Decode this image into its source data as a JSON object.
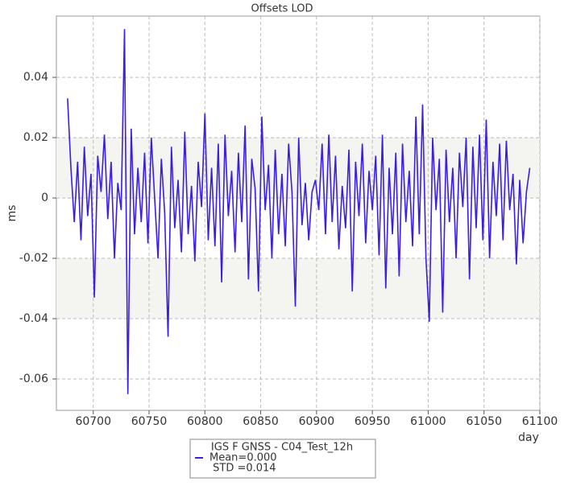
{
  "chart_data": {
    "type": "line",
    "title": "Offsets LOD",
    "x_label": "day",
    "y_label": "ms",
    "x": [
      60677,
      60680,
      60683,
      60686,
      60689,
      60692,
      60695,
      60698,
      60701,
      60704,
      60707,
      60710,
      60713,
      60716,
      60719,
      60722,
      60725,
      60728,
      60731,
      60734,
      60737,
      60740,
      60743,
      60746,
      60749,
      60752,
      60755,
      60758,
      60761,
      60764,
      60767,
      60770,
      60773,
      60776,
      60779,
      60782,
      60785,
      60788,
      60791,
      60794,
      60797,
      60800,
      60803,
      60806,
      60809,
      60812,
      60815,
      60818,
      60821,
      60824,
      60827,
      60830,
      60833,
      60836,
      60839,
      60842,
      60845,
      60848,
      60851,
      60854,
      60857,
      60860,
      60863,
      60866,
      60869,
      60872,
      60875,
      60878,
      60881,
      60884,
      60887,
      60890,
      60893,
      60896,
      60899,
      60902,
      60905,
      60908,
      60911,
      60914,
      60917,
      60920,
      60923,
      60926,
      60929,
      60932,
      60935,
      60938,
      60941,
      60944,
      60947,
      60950,
      60953,
      60956,
      60959,
      60962,
      60965,
      60968,
      60971,
      60974,
      60977,
      60980,
      60983,
      60986,
      60989,
      60992,
      60995,
      60998,
      61001,
      61004,
      61007,
      61010,
      61013,
      61016,
      61019,
      61022,
      61025,
      61028,
      61031,
      61034,
      61037,
      61040,
      61043,
      61046,
      61049,
      61052,
      61055,
      61058,
      61061,
      61064,
      61067,
      61070,
      61073,
      61076,
      61079,
      61082,
      61085,
      61088,
      61091
    ],
    "series": [
      {
        "name": "IGS F GNSS - C04_Test_12h",
        "color": "#3b1fe0",
        "values": [
          0.033,
          0.01,
          -0.008,
          0.012,
          -0.014,
          0.017,
          -0.006,
          0.008,
          -0.033,
          0.014,
          0.002,
          0.021,
          -0.007,
          0.012,
          -0.02,
          0.005,
          -0.004,
          0.056,
          -0.065,
          0.023,
          -0.012,
          0.01,
          -0.008,
          0.015,
          -0.015,
          0.02,
          0.0,
          -0.02,
          0.013,
          -0.005,
          -0.046,
          0.017,
          -0.01,
          0.006,
          -0.018,
          0.022,
          -0.012,
          0.004,
          -0.021,
          0.012,
          -0.003,
          0.028,
          -0.014,
          0.01,
          -0.016,
          0.018,
          -0.028,
          0.021,
          -0.006,
          0.009,
          -0.018,
          0.015,
          -0.008,
          0.024,
          -0.027,
          0.013,
          0.003,
          -0.031,
          0.027,
          -0.004,
          0.011,
          -0.02,
          0.016,
          -0.012,
          0.008,
          -0.016,
          0.018,
          0.002,
          -0.036,
          0.02,
          -0.009,
          0.005,
          -0.014,
          0.002,
          0.006,
          -0.004,
          0.018,
          -0.012,
          0.021,
          -0.008,
          0.014,
          -0.017,
          0.004,
          -0.01,
          0.016,
          -0.031,
          0.012,
          -0.006,
          0.018,
          -0.015,
          0.009,
          -0.004,
          0.014,
          -0.019,
          0.021,
          -0.03,
          0.01,
          -0.012,
          0.015,
          -0.026,
          0.018,
          -0.008,
          0.009,
          -0.016,
          0.027,
          -0.012,
          0.031,
          -0.02,
          -0.041,
          0.02,
          -0.004,
          0.013,
          -0.038,
          0.016,
          -0.008,
          0.01,
          -0.02,
          0.015,
          -0.003,
          0.02,
          -0.027,
          0.017,
          -0.01,
          0.021,
          -0.014,
          0.026,
          -0.02,
          0.012,
          -0.006,
          0.018,
          -0.014,
          0.019,
          -0.004,
          0.008,
          -0.022,
          0.006,
          -0.015,
          0.002,
          0.01
        ]
      }
    ],
    "legend_notes": [
      "Mean=0.000",
      " STD =0.014"
    ],
    "xlim": [
      60667,
      61100
    ],
    "xticks": [
      60700,
      60750,
      60800,
      60850,
      60900,
      60950,
      61000,
      61050,
      61100
    ],
    "ylim": [
      -0.0704,
      0.0603
    ],
    "yticks": [
      -0.06,
      -0.04,
      -0.02,
      0,
      0.02,
      0.04
    ],
    "grid": true
  }
}
